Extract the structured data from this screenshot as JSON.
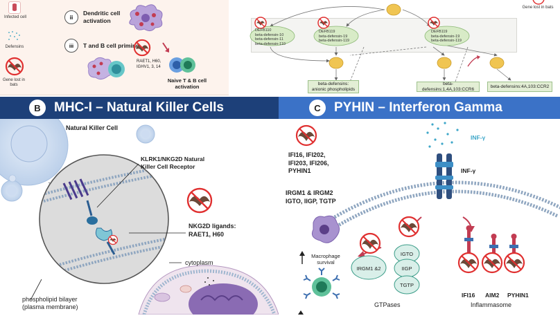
{
  "panelA": {
    "legend": {
      "infected": "Infected cell",
      "defensins": "Defensins",
      "gene_lost": "Gene lost in bats"
    },
    "step_ii": {
      "num": "ii",
      "label": "Dendritic cell activation"
    },
    "step_iii": {
      "num": "iii",
      "label": "T and B cell priming"
    },
    "genes_lost": "RAET1, H60, IGHV1, 3, 14",
    "naive_label": "Naive T & B cell activation",
    "right_legend": "Gene lost in bats",
    "pathway": {
      "box1": "DEFB110\nbeta-defensin-10\nbeta-defensin-11\nbeta-defensin-110",
      "box2": "DEFB119\nbeta-defensin-19\nbeta-defensin-119",
      "box3": "DEFB119\nbeta-defensin-19\nbeta-defensin-119",
      "out1": "beta-defensins:\nanionic phospholipids",
      "out2": "beta-defensins:1,4A,103:CCR6",
      "out3": "beta-defensins:4A,103:CCR2"
    }
  },
  "panelB": {
    "badge": "B",
    "title": "MHC-I – Natural Killer Cells",
    "nk_cell": "Natural Killer Cell",
    "receptor": "KLRK1/NKG2D Natural Killer Cell Receptor",
    "ligands_title": "NKG2D ligands:",
    "ligands": "RAET1, H60",
    "cytoplasm": "cytoplasm",
    "bilayer": "phospholipid bilayer (plasma membrane)"
  },
  "panelC": {
    "badge": "C",
    "title": "PYHIN – Interferon Gamma",
    "genes1": "IFI16, IFI202, IFI203, IFI206, PYHIN1",
    "genes2": "IRGM1 &  IRGM2 IGTO, IIGP, TGTP",
    "inf_gamma": "INF-γ",
    "inf_gamma_receptor": "INF-γ",
    "macrophage": "Macrophage survival",
    "irgm": "IRGM1 &2",
    "igto": "IGTO",
    "iigp": "IIGP",
    "tgtp": "TGTP",
    "gtpases": "GTPases",
    "ifi16": "IFI16",
    "aim2": "AIM2",
    "pyhin1": "PYHIN1",
    "inflammasome": "Inflammasome"
  },
  "colors": {
    "banner_b": "#1d4079",
    "banner_c": "#3b72c7",
    "panel_a_bg": "#fdf3ed",
    "node_green": "#d8ebc7",
    "node_orange": "#f0c552",
    "membrane": "#8fa6c0"
  }
}
